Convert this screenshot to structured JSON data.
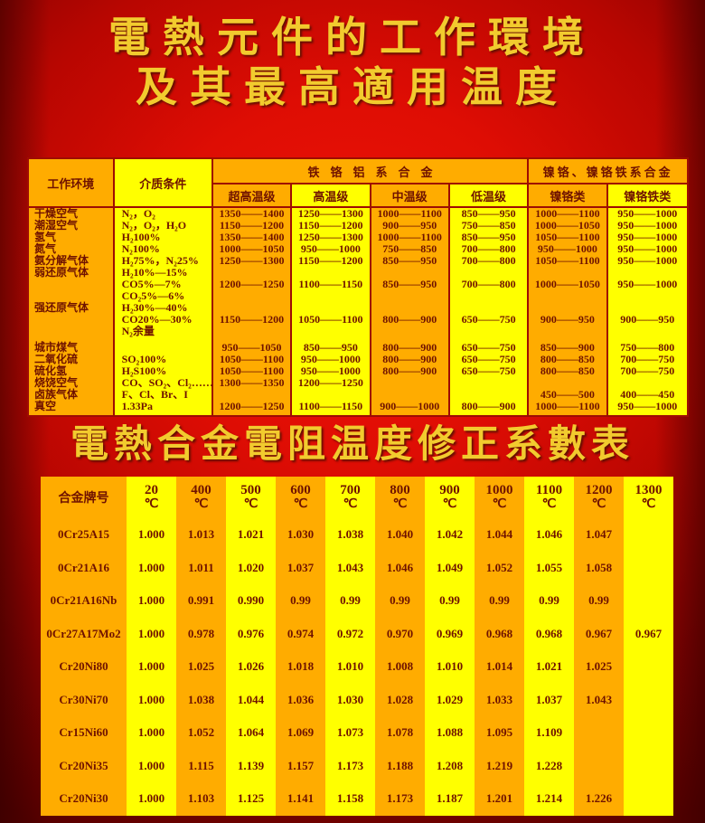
{
  "titles": {
    "line1": "電熱元件的工作環境",
    "line2": "及其最高適用温度",
    "second": "電熱合金電阻温度修正系數表"
  },
  "colors": {
    "orange": "#FFAC00",
    "yellow": "#FFFF00",
    "grid_red": "#9E0C03",
    "text_dark_red": "#6F1200",
    "title_gold": "#F2CB2E",
    "background_red": "#C00702"
  },
  "table1": {
    "header": {
      "env": "工作环境",
      "medium": "介质条件",
      "group_fecral": "铁铬铝系合金",
      "group_nicr": "镍铬、镍铬铁系合金",
      "subcols": [
        "超高温级",
        "高温级",
        "中温级",
        "低温级",
        "镍铬类",
        "镍铬铁类"
      ]
    },
    "rows": [
      {
        "env": "干燥空气",
        "medium": [
          "N₂，O₂"
        ],
        "vals": [
          "1350——1400",
          "1250——1300",
          "1000——1100",
          "850——950",
          "1000——1100",
          "950——1000"
        ]
      },
      {
        "env": "潮湿空气",
        "medium": [
          "N₂，O₂，H₂O"
        ],
        "vals": [
          "1150——1200",
          "1150——1200",
          "900——950",
          "750——850",
          "1000——1050",
          "950——1000"
        ]
      },
      {
        "env": "氢气",
        "medium": [
          "H₂100%"
        ],
        "vals": [
          "1350——1400",
          "1250——1300",
          "1000——1100",
          "850——950",
          "1050——1100",
          "950——1000"
        ]
      },
      {
        "env": "氮气",
        "medium": [
          "N₂100%"
        ],
        "vals": [
          "1000——1050",
          "950——1000",
          "750——850",
          "700——800",
          "950——1000",
          "950——1000"
        ]
      },
      {
        "env": "氨分解气体",
        "medium": [
          "H₂75%，N₂25%"
        ],
        "vals": [
          "1250——1300",
          "1150——1200",
          "850——950",
          "700——800",
          "1050——1100",
          "950——1000"
        ]
      },
      {
        "env": "弱还原气体",
        "medium": [
          "H₂10%—15%",
          "CO5%—7%",
          "CO₂5%—6%"
        ],
        "vals": [
          "1200——1250",
          "1100——1150",
          "850——950",
          "700——800",
          "1000——1050",
          "950——1000"
        ]
      },
      {
        "env": "强还原气体",
        "medium": [
          "H₂30%—40%",
          "CO20%—30%",
          "N₂余量"
        ],
        "vals": [
          "1150——1200",
          "1050——1100",
          "800——900",
          "650——750",
          "900——950",
          "900——950"
        ]
      },
      {
        "env": "城市煤气",
        "medium": [],
        "vals": [
          "950——1050",
          "850——950",
          "800——900",
          "650——750",
          "850——900",
          "750——800"
        ]
      },
      {
        "env": "二氧化硫",
        "medium": [
          "SO₂100%"
        ],
        "vals": [
          "1050——1100",
          "950——1000",
          "800——900",
          "650——750",
          "800——850",
          "700——750"
        ]
      },
      {
        "env": "硫化氢",
        "medium": [
          "H₂S100%"
        ],
        "vals": [
          "1050——1100",
          "950——1000",
          "800——900",
          "650——750",
          "800——850",
          "700——750"
        ]
      },
      {
        "env": "烧饶空气",
        "medium": [
          "CO、SO₂、Cl₂……"
        ],
        "vals": [
          "1300——1350",
          "1200——1250",
          "",
          "",
          "",
          ""
        ]
      },
      {
        "env": "卤族气体",
        "medium": [
          "F、Cl、Br、I"
        ],
        "vals": [
          "",
          "",
          "",
          "",
          "450——500",
          "400——450"
        ]
      },
      {
        "env": "真空",
        "medium": [
          "1.33Pa"
        ],
        "vals": [
          "1200——1250",
          "1100——1150",
          "900——1000",
          "800——900",
          "1000——1100",
          "950——1000"
        ]
      }
    ]
  },
  "table2": {
    "corner": "合金牌号",
    "degree": "℃",
    "temps": [
      "20",
      "400",
      "500",
      "600",
      "700",
      "800",
      "900",
      "1000",
      "1100",
      "1200",
      "1300"
    ],
    "rows": [
      {
        "name": "0Cr25A15",
        "vals": [
          "1.000",
          "1.013",
          "1.021",
          "1.030",
          "1.038",
          "1.040",
          "1.042",
          "1.044",
          "1.046",
          "1.047",
          ""
        ]
      },
      {
        "name": "0Cr21A16",
        "vals": [
          "1.000",
          "1.011",
          "1.020",
          "1.037",
          "1.043",
          "1.046",
          "1.049",
          "1.052",
          "1.055",
          "1.058",
          ""
        ]
      },
      {
        "name": "0Cr21A16Nb",
        "vals": [
          "1.000",
          "0.991",
          "0.990",
          "0.99",
          "0.99",
          "0.99",
          "0.99",
          "0.99",
          "0.99",
          "0.99",
          ""
        ]
      },
      {
        "name": "0Cr27A17Mo2",
        "vals": [
          "1.000",
          "0.978",
          "0.976",
          "0.974",
          "0.972",
          "0.970",
          "0.969",
          "0.968",
          "0.968",
          "0.967",
          "0.967"
        ]
      },
      {
        "name": "Cr20Ni80",
        "vals": [
          "1.000",
          "1.025",
          "1.026",
          "1.018",
          "1.010",
          "1.008",
          "1.010",
          "1.014",
          "1.021",
          "1.025",
          ""
        ]
      },
      {
        "name": "Cr30Ni70",
        "vals": [
          "1.000",
          "1.038",
          "1.044",
          "1.036",
          "1.030",
          "1.028",
          "1.029",
          "1.033",
          "1.037",
          "1.043",
          ""
        ]
      },
      {
        "name": "Cr15Ni60",
        "vals": [
          "1.000",
          "1.052",
          "1.064",
          "1.069",
          "1.073",
          "1.078",
          "1.088",
          "1.095",
          "1.109",
          "",
          ""
        ]
      },
      {
        "name": "Cr20Ni35",
        "vals": [
          "1.000",
          "1.115",
          "1.139",
          "1.157",
          "1.173",
          "1.188",
          "1.208",
          "1.219",
          "1.228",
          "",
          ""
        ]
      },
      {
        "name": "Cr20Ni30",
        "vals": [
          "1.000",
          "1.103",
          "1.125",
          "1.141",
          "1.158",
          "1.173",
          "1.187",
          "1.201",
          "1.214",
          "1.226",
          ""
        ]
      }
    ]
  }
}
